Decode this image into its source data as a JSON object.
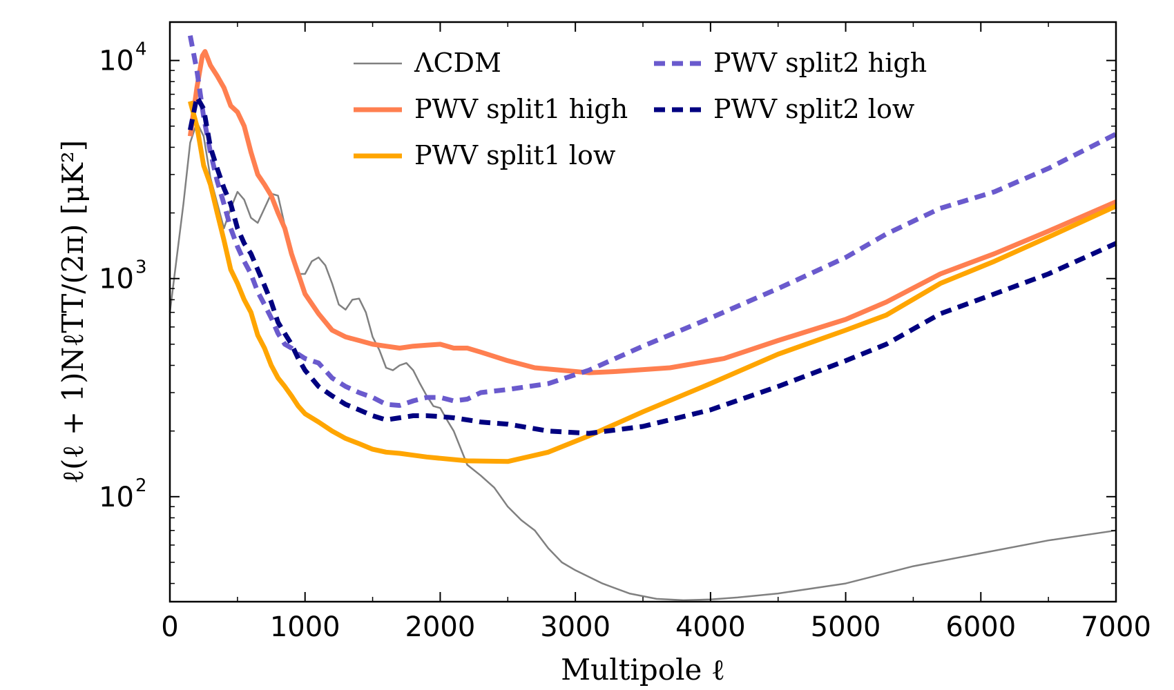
{
  "chart_data": {
    "type": "line",
    "title": "",
    "xlabel": "Multipole ℓ",
    "ylabel": "ℓ(ℓ + 1)NℓTT/(2π) [μK²]",
    "xlim": [
      0,
      7000
    ],
    "ylim": [
      33,
      15000
    ],
    "yscale": "log",
    "x_ticks": [
      0,
      1000,
      2000,
      3000,
      4000,
      5000,
      6000,
      7000
    ],
    "x_tick_labels": [
      "0",
      "1000",
      "2000",
      "3000",
      "4000",
      "5000",
      "6000",
      "7000"
    ],
    "y_ticks": [
      100,
      1000,
      10000
    ],
    "y_tick_labels": [
      {
        "base": "10",
        "exp": "2"
      },
      {
        "base": "10",
        "exp": "3"
      },
      {
        "base": "10",
        "exp": "4"
      }
    ],
    "legend_position": "top",
    "series": [
      {
        "name": "ΛCDM",
        "color": "#808080",
        "style": "solid",
        "width": 2.5,
        "x": [
          0,
          100,
          150,
          200,
          250,
          300,
          400,
          450,
          500,
          550,
          600,
          650,
          700,
          750,
          800,
          850,
          900,
          950,
          1000,
          1050,
          1100,
          1150,
          1200,
          1250,
          1300,
          1350,
          1400,
          1450,
          1500,
          1550,
          1600,
          1650,
          1700,
          1750,
          1800,
          1850,
          1900,
          1950,
          2000,
          2050,
          2100,
          2200,
          2300,
          2400,
          2500,
          2600,
          2700,
          2800,
          2900,
          3000,
          3200,
          3400,
          3600,
          3800,
          4000,
          4200,
          4500,
          5000,
          5500,
          6000,
          6500,
          7000
        ],
        "y": [
          700,
          2200,
          4200,
          5200,
          4500,
          2900,
          1700,
          2100,
          2500,
          2300,
          1900,
          1800,
          2100,
          2450,
          2400,
          1750,
          1300,
          1050,
          1050,
          1200,
          1250,
          1150,
          950,
          760,
          720,
          800,
          810,
          700,
          540,
          470,
          390,
          380,
          400,
          410,
          380,
          330,
          290,
          260,
          255,
          225,
          200,
          140,
          125,
          110,
          90,
          78,
          70,
          58,
          50,
          46,
          40,
          36,
          34,
          33.5,
          33.8,
          34.5,
          36,
          40,
          48,
          55,
          63,
          70
        ]
      },
      {
        "name": "PWV split1 high",
        "color": "#FF7F50",
        "style": "solid",
        "width": 7,
        "x": [
          150,
          200,
          240,
          260,
          300,
          350,
          400,
          450,
          500,
          550,
          600,
          650,
          700,
          750,
          800,
          850,
          900,
          1000,
          1100,
          1200,
          1300,
          1400,
          1500,
          1600,
          1700,
          1800,
          1900,
          2000,
          2100,
          2200,
          2300,
          2500,
          2700,
          2900,
          3100,
          3300,
          3700,
          4100,
          4500,
          5000,
          5300,
          5700,
          6100,
          6500,
          7000
        ],
        "y": [
          4500,
          7500,
          10500,
          11000,
          9500,
          8500,
          7500,
          6200,
          5800,
          5000,
          3800,
          3000,
          2700,
          2400,
          2000,
          1700,
          1300,
          850,
          690,
          580,
          540,
          520,
          500,
          490,
          480,
          490,
          495,
          500,
          480,
          480,
          460,
          420,
          390,
          380,
          370,
          375,
          390,
          430,
          520,
          650,
          780,
          1050,
          1300,
          1650,
          2250
        ]
      },
      {
        "name": "PWV split1 low",
        "color": "#FFA500",
        "style": "solid",
        "width": 7,
        "x": [
          150,
          200,
          250,
          300,
          350,
          400,
          450,
          500,
          550,
          600,
          650,
          700,
          750,
          800,
          850,
          900,
          950,
          1000,
          1100,
          1200,
          1300,
          1400,
          1500,
          1600,
          1700,
          1800,
          1900,
          2000,
          2200,
          2500,
          2800,
          3100,
          3500,
          4000,
          4500,
          5000,
          5300,
          5700,
          6100,
          6500,
          7000
        ],
        "y": [
          6500,
          5000,
          3300,
          2700,
          2000,
          1500,
          1100,
          950,
          800,
          700,
          550,
          480,
          400,
          350,
          320,
          290,
          260,
          240,
          220,
          200,
          185,
          175,
          165,
          160,
          158,
          155,
          152,
          150,
          146,
          145,
          160,
          190,
          245,
          330,
          450,
          580,
          680,
          950,
          1200,
          1550,
          2150
        ]
      },
      {
        "name": "PWV split2 high",
        "color": "#6A5ACD",
        "style": "dashed",
        "width": 7,
        "x": [
          150,
          200,
          250,
          300,
          350,
          400,
          450,
          500,
          550,
          600,
          650,
          700,
          750,
          800,
          850,
          900,
          950,
          1000,
          1100,
          1200,
          1300,
          1400,
          1500,
          1600,
          1700,
          1800,
          1900,
          2000,
          2100,
          2200,
          2300,
          2500,
          2800,
          3100,
          3500,
          4000,
          4500,
          5000,
          5300,
          5700,
          6100,
          6500,
          7000
        ],
        "y": [
          13000,
          9000,
          5500,
          3800,
          2800,
          2200,
          1700,
          1400,
          1200,
          1050,
          870,
          760,
          660,
          560,
          500,
          480,
          450,
          430,
          410,
          350,
          320,
          300,
          285,
          265,
          262,
          275,
          285,
          285,
          275,
          280,
          300,
          310,
          330,
          380,
          490,
          660,
          900,
          1250,
          1600,
          2100,
          2500,
          3200,
          4600
        ]
      },
      {
        "name": "PWV split2 low",
        "color": "#000080",
        "style": "dashed",
        "width": 7,
        "x": [
          150,
          200,
          250,
          300,
          350,
          400,
          450,
          500,
          550,
          600,
          650,
          700,
          750,
          800,
          850,
          900,
          950,
          1000,
          1100,
          1200,
          1300,
          1400,
          1500,
          1600,
          1700,
          1800,
          1900,
          2000,
          2100,
          2200,
          2300,
          2500,
          2800,
          3100,
          3500,
          4000,
          4500,
          5000,
          5300,
          5700,
          6100,
          6500,
          7000
        ],
        "y": [
          4800,
          6800,
          6000,
          4000,
          3200,
          2600,
          2200,
          1700,
          1450,
          1300,
          1100,
          930,
          780,
          630,
          560,
          500,
          430,
          380,
          320,
          290,
          265,
          250,
          235,
          225,
          230,
          235,
          235,
          233,
          230,
          225,
          220,
          215,
          200,
          195,
          210,
          250,
          320,
          420,
          500,
          690,
          850,
          1050,
          1450
        ]
      }
    ]
  }
}
